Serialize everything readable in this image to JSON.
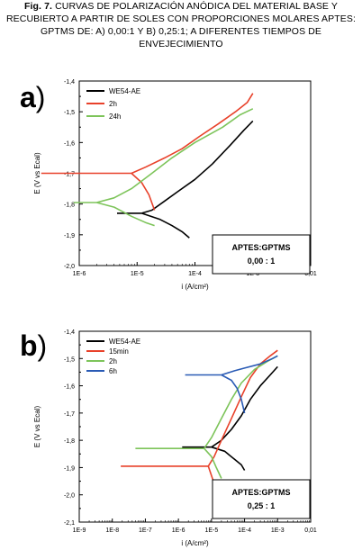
{
  "caption": {
    "fig_label": "Fig. 7.",
    "text": "CURVAS DE POLARIZACIÓN ANÓDICA DEL MATERIAL BASE Y RECUBIERTO A PARTIR DE SOLES CON PROPORCIONES MOLARES APTES: GPTMS DE: A) 0,00:1 Y B) 0,25:1; A DIFERENTES TIEMPOS DE ENVEJECIMIENTO"
  },
  "chart_data": [
    {
      "type": "line",
      "panel_label": "a",
      "xlabel": "i (A/cm²)",
      "ylabel": "E (V vs Ecal)",
      "x_scale": "log",
      "xlim": [
        1e-06,
        0.01
      ],
      "ylim": [
        -2.0,
        -1.4
      ],
      "x_ticks": [
        "1E-6",
        "1E-5",
        "1E-4",
        "1E-3",
        "0,01"
      ],
      "y_ticks": [
        "-1,4",
        "-1,5",
        "-1,6",
        "-1,7",
        "-1,8",
        "-1,9",
        "-2,0"
      ],
      "legend": {
        "placement": "top-left"
      },
      "annotation": {
        "line1": "APTES:GPTMS",
        "line2": "0,00 : 1"
      },
      "series": [
        {
          "name": "WE54-AE",
          "color": "#000000",
          "anodic": [
            [
              1.2e-05,
              -1.83
            ],
            [
              1.8e-05,
              -1.82
            ],
            [
              3e-05,
              -1.79
            ],
            [
              5e-05,
              -1.76
            ],
            [
              0.0001,
              -1.72
            ],
            [
              0.0002,
              -1.67
            ],
            [
              0.0004,
              -1.61
            ],
            [
              0.0007,
              -1.56
            ],
            [
              0.001,
              -1.53
            ]
          ],
          "cathodic": [
            [
              1.2e-05,
              -1.83
            ],
            [
              2.5e-05,
              -1.85
            ],
            [
              4e-05,
              -1.87
            ],
            [
              6e-05,
              -1.89
            ],
            [
              8e-05,
              -1.91
            ]
          ],
          "flat": [
            [
              4.5e-06,
              -1.83
            ],
            [
              1.2e-05,
              -1.83
            ]
          ]
        },
        {
          "name": "2h",
          "color": "#e8412a",
          "anodic": [
            [
              8e-06,
              -1.7
            ],
            [
              1.4e-05,
              -1.68
            ],
            [
              3e-05,
              -1.65
            ],
            [
              6e-05,
              -1.62
            ],
            [
              0.00012,
              -1.58
            ],
            [
              0.00025,
              -1.54
            ],
            [
              0.0005,
              -1.5
            ],
            [
              0.0008,
              -1.47
            ],
            [
              0.001,
              -1.44
            ]
          ],
          "cathodic": [
            [
              8e-06,
              -1.7
            ],
            [
              1.2e-05,
              -1.73
            ],
            [
              1.6e-05,
              -1.77
            ],
            [
              2e-05,
              -1.82
            ]
          ],
          "flat": [
            [
              2.2e-07,
              -1.7
            ],
            [
              8e-06,
              -1.7
            ]
          ]
        },
        {
          "name": "24h",
          "color": "#7dc45a",
          "anodic": [
            [
              2e-06,
              -1.795
            ],
            [
              4e-06,
              -1.78
            ],
            [
              8e-06,
              -1.75
            ],
            [
              1.8e-05,
              -1.7
            ],
            [
              4e-05,
              -1.65
            ],
            [
              0.0001,
              -1.6
            ],
            [
              0.0003,
              -1.55
            ],
            [
              0.0006,
              -1.51
            ],
            [
              0.001,
              -1.49
            ]
          ],
          "cathodic": [
            [
              2e-06,
              -1.795
            ],
            [
              4e-06,
              -1.81
            ],
            [
              8e-06,
              -1.84
            ],
            [
              1.4e-05,
              -1.86
            ],
            [
              2e-05,
              -1.87
            ]
          ],
          "flat": [
            [
              8e-07,
              -1.795
            ],
            [
              2e-06,
              -1.795
            ]
          ]
        }
      ]
    },
    {
      "type": "line",
      "panel_label": "b",
      "xlabel": "i (A/cm²)",
      "ylabel": "E (V vs Ecal)",
      "x_scale": "log",
      "xlim": [
        1e-09,
        0.01
      ],
      "ylim": [
        -2.1,
        -1.4
      ],
      "x_ticks": [
        "1E-9",
        "1E-8",
        "1E-7",
        "1E-6",
        "1E-5",
        "1E-4",
        "1E-3",
        "0,01"
      ],
      "y_ticks": [
        "-1,4",
        "-1,5",
        "-1,6",
        "-1,7",
        "-1,8",
        "-1,9",
        "-2,0",
        "-2,1"
      ],
      "legend": {
        "placement": "top-left"
      },
      "annotation": {
        "line1": "APTES:GPTMS",
        "line2": "0,25 : 1"
      },
      "series": [
        {
          "name": "WE54-AE",
          "color": "#000000",
          "anodic": [
            [
              1e-05,
              -1.825
            ],
            [
              2e-05,
              -1.8
            ],
            [
              4e-05,
              -1.76
            ],
            [
              8e-05,
              -1.71
            ],
            [
              0.00015,
              -1.65
            ],
            [
              0.0003,
              -1.6
            ],
            [
              0.0006,
              -1.56
            ],
            [
              0.001,
              -1.53
            ]
          ],
          "cathodic": [
            [
              1e-05,
              -1.825
            ],
            [
              2.5e-05,
              -1.84
            ],
            [
              5e-05,
              -1.87
            ],
            [
              8e-05,
              -1.89
            ],
            [
              0.0001,
              -1.91
            ]
          ],
          "flat": [
            [
              1.3e-06,
              -1.825
            ],
            [
              1e-05,
              -1.825
            ]
          ]
        },
        {
          "name": "15min",
          "color": "#e8412a",
          "anodic": [
            [
              8e-06,
              -1.895
            ],
            [
              1.2e-05,
              -1.86
            ],
            [
              2e-05,
              -1.8
            ],
            [
              4e-05,
              -1.72
            ],
            [
              8e-05,
              -1.64
            ],
            [
              0.00015,
              -1.57
            ],
            [
              0.0003,
              -1.52
            ],
            [
              0.0006,
              -1.49
            ],
            [
              0.001,
              -1.47
            ]
          ],
          "cathodic": [
            [
              8e-06,
              -1.895
            ],
            [
              1e-05,
              -1.93
            ],
            [
              1.3e-05,
              -1.97
            ],
            [
              1.5e-05,
              -2.0
            ]
          ],
          "flat": [
            [
              1.8e-08,
              -1.895
            ],
            [
              8e-06,
              -1.895
            ]
          ]
        },
        {
          "name": "2h",
          "color": "#7dc45a",
          "anodic": [
            [
              6e-06,
              -1.83
            ],
            [
              1e-05,
              -1.79
            ],
            [
              2e-05,
              -1.72
            ],
            [
              4e-05,
              -1.65
            ],
            [
              8e-05,
              -1.59
            ],
            [
              0.0002,
              -1.54
            ],
            [
              0.0005,
              -1.51
            ],
            [
              0.001,
              -1.49
            ]
          ],
          "cathodic": [
            [
              6e-06,
              -1.83
            ],
            [
              1e-05,
              -1.86
            ],
            [
              1.4e-05,
              -1.9
            ],
            [
              2e-05,
              -1.94
            ]
          ],
          "flat": [
            [
              5e-08,
              -1.83
            ],
            [
              6e-06,
              -1.83
            ]
          ]
        },
        {
          "name": "6h",
          "color": "#2a5bb5",
          "anodic": [
            [
              2e-05,
              -1.56
            ],
            [
              5e-05,
              -1.545
            ],
            [
              0.0001,
              -1.535
            ],
            [
              0.0003,
              -1.52
            ],
            [
              0.0007,
              -1.5
            ],
            [
              0.001,
              -1.49
            ]
          ],
          "cathodic": [
            [
              2e-05,
              -1.56
            ],
            [
              4e-05,
              -1.58
            ],
            [
              6e-05,
              -1.61
            ],
            [
              8e-05,
              -1.65
            ],
            [
              0.0001,
              -1.7
            ]
          ],
          "flat": [
            [
              1.6e-06,
              -1.56
            ],
            [
              2e-05,
              -1.56
            ]
          ]
        }
      ]
    }
  ]
}
